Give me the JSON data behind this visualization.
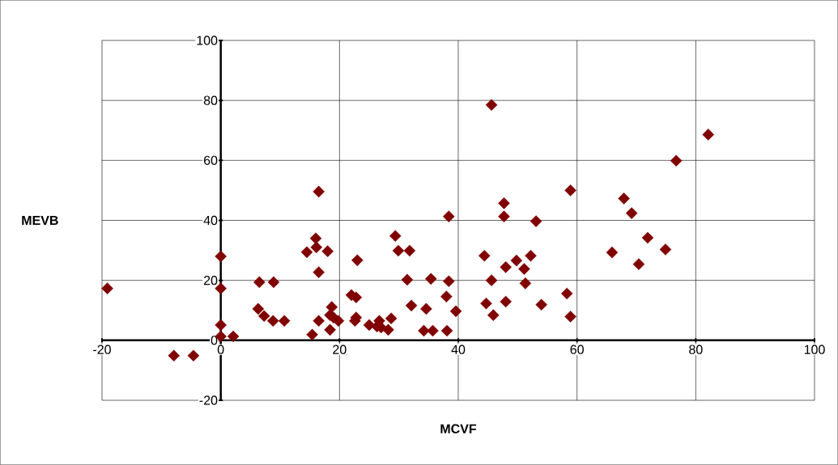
{
  "chart_data": {
    "type": "scatter",
    "xlabel": "MCVF",
    "ylabel": "MEVB",
    "xlim": [
      -20,
      100
    ],
    "ylim": [
      -20,
      100
    ],
    "xticks": [
      -20,
      0,
      20,
      40,
      60,
      80,
      100
    ],
    "yticks": [
      -20,
      0,
      20,
      40,
      60,
      80,
      100
    ],
    "grid": true,
    "marker": "diamond",
    "series": [
      {
        "color": "#800000",
        "x": [
          -19.1,
          -7.9,
          -4.6,
          0,
          0,
          0,
          0,
          2.1,
          6.5,
          8.9,
          6.3,
          7.3,
          8.8,
          10.7,
          14.5,
          16,
          16.1,
          18,
          16.5,
          16.5,
          15.4,
          16.5,
          18.4,
          18.7,
          18.4,
          19,
          19.8,
          22,
          22.8,
          23,
          22.8,
          22.6,
          25,
          26.3,
          27,
          26.7,
          28.2,
          28.7,
          29.4,
          29.9,
          31.8,
          31.4,
          32.1,
          34.2,
          34.6,
          35.7,
          35.4,
          38.1,
          38,
          38.4,
          38.4,
          39.6,
          45.6,
          76.7,
          58.9,
          47.7,
          47.7,
          53.1,
          44.4,
          52.2,
          49.8,
          48,
          51.1,
          45.6,
          51.3,
          44.7,
          48,
          45.9,
          54,
          58.3,
          58.9,
          82.1,
          67.9,
          69.2,
          71.9,
          65.9,
          74.9,
          70.4
        ],
        "values": [
          17.3,
          -5.1,
          -5.1,
          28,
          17.3,
          5.1,
          1.3,
          1.3,
          19.4,
          19.4,
          10.5,
          8.1,
          6.5,
          6.5,
          29.4,
          34,
          31,
          29.7,
          22.7,
          49.6,
          1.9,
          6.5,
          3.5,
          11.1,
          8.4,
          7.6,
          6.5,
          15.1,
          14.3,
          26.7,
          7.6,
          6.5,
          5.1,
          4.6,
          4.3,
          6.5,
          3.5,
          7.3,
          34.8,
          29.9,
          29.9,
          20.2,
          11.6,
          3.2,
          10.5,
          3.2,
          20.5,
          3.2,
          14.6,
          19.7,
          41.3,
          9.7,
          78.5,
          59.9,
          50,
          45.7,
          41.3,
          39.7,
          28.2,
          28.2,
          26.6,
          24.4,
          23.8,
          20,
          19,
          12.3,
          12.9,
          8.4,
          11.9,
          15.6,
          7.9,
          68.6,
          47.3,
          42.4,
          34.2,
          29.3,
          30.3,
          25.4
        ]
      }
    ]
  }
}
